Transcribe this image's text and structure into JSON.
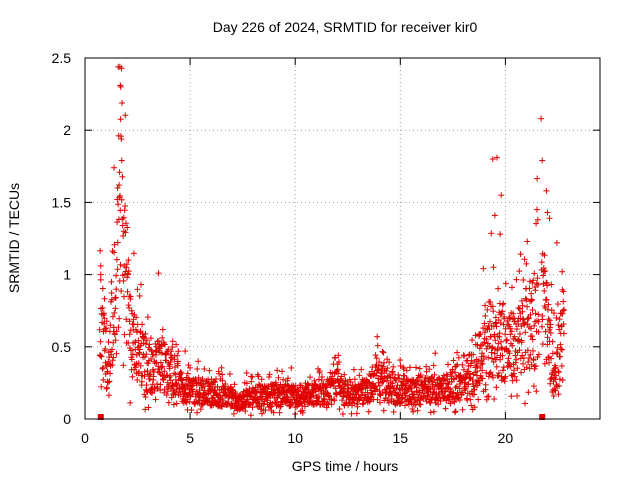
{
  "chart_data": {
    "type": "scatter",
    "title": "Day 226 of 2024, SRMTID for receiver kir0",
    "xlabel": "GPS time / hours",
    "ylabel": "SRMTID / TECUs",
    "xlim": [
      0,
      24.5
    ],
    "ylim": [
      0,
      2.5
    ],
    "x_ticks": [
      0,
      5,
      10,
      15,
      20
    ],
    "x_tick_labels": [
      "0",
      "5",
      "10",
      "15",
      "20"
    ],
    "y_ticks": [
      0,
      0.5,
      1,
      1.5,
      2,
      2.5
    ],
    "y_tick_labels": [
      "0",
      "0.5",
      "1",
      "1.5",
      "2",
      "2.5"
    ],
    "grid": true,
    "marker": "+",
    "series": [
      {
        "name": "SRMTID",
        "color": "#e00000",
        "profile": [
          [
            0.7,
            0.85
          ],
          [
            0.9,
            0.55
          ],
          [
            1.1,
            0.4
          ],
          [
            1.3,
            0.7
          ],
          [
            1.5,
            1.1
          ],
          [
            1.7,
            1.5
          ],
          [
            1.9,
            1.15
          ],
          [
            2.1,
            0.75
          ],
          [
            2.4,
            0.55
          ],
          [
            2.8,
            0.42
          ],
          [
            3.2,
            0.38
          ],
          [
            3.6,
            0.42
          ],
          [
            4.0,
            0.35
          ],
          [
            4.5,
            0.26
          ],
          [
            5.0,
            0.22
          ],
          [
            6.0,
            0.2
          ],
          [
            7.0,
            0.17
          ],
          [
            7.3,
            0.12
          ],
          [
            8.0,
            0.18
          ],
          [
            9.0,
            0.18
          ],
          [
            10.0,
            0.17
          ],
          [
            11.0,
            0.2
          ],
          [
            11.5,
            0.17
          ],
          [
            11.9,
            0.32
          ],
          [
            12.3,
            0.2
          ],
          [
            13.0,
            0.18
          ],
          [
            13.6,
            0.25
          ],
          [
            14.0,
            0.3
          ],
          [
            14.6,
            0.22
          ],
          [
            15.5,
            0.2
          ],
          [
            16.5,
            0.22
          ],
          [
            17.5,
            0.24
          ],
          [
            18.3,
            0.28
          ],
          [
            18.7,
            0.42
          ],
          [
            19.2,
            0.6
          ],
          [
            19.6,
            0.65
          ],
          [
            20.0,
            0.55
          ],
          [
            20.5,
            0.55
          ],
          [
            21.0,
            0.7
          ],
          [
            21.4,
            0.8
          ],
          [
            21.8,
            0.9
          ],
          [
            22.1,
            0.55
          ],
          [
            22.3,
            0.35
          ],
          [
            22.6,
            0.55
          ],
          [
            22.8,
            0.6
          ]
        ],
        "outliers": [
          [
            0.75,
            1.0
          ],
          [
            0.75,
            1.06
          ],
          [
            1.38,
            1.74
          ],
          [
            1.55,
            1.6
          ],
          [
            1.62,
            1.62
          ],
          [
            1.66,
            2.44
          ],
          [
            1.68,
            2.31
          ],
          [
            1.7,
            2.3
          ],
          [
            1.75,
            1.79
          ],
          [
            1.85,
            1.3
          ],
          [
            3.5,
            1.01
          ],
          [
            13.9,
            0.57
          ],
          [
            19.4,
            1.8
          ],
          [
            19.6,
            1.81
          ],
          [
            19.8,
            1.55
          ],
          [
            19.75,
            1.28
          ],
          [
            19.5,
            1.41
          ],
          [
            21.5,
            1.45
          ],
          [
            21.7,
            2.08
          ],
          [
            21.75,
            1.79
          ],
          [
            21.95,
            1.58
          ],
          [
            22.0,
            1.43
          ],
          [
            22.1,
            1.39
          ],
          [
            22.45,
            1.22
          ],
          [
            22.7,
            1.02
          ]
        ],
        "gap_markers": [
          [
            0.75,
            0.0
          ],
          [
            21.75,
            0.0
          ]
        ]
      }
    ]
  }
}
